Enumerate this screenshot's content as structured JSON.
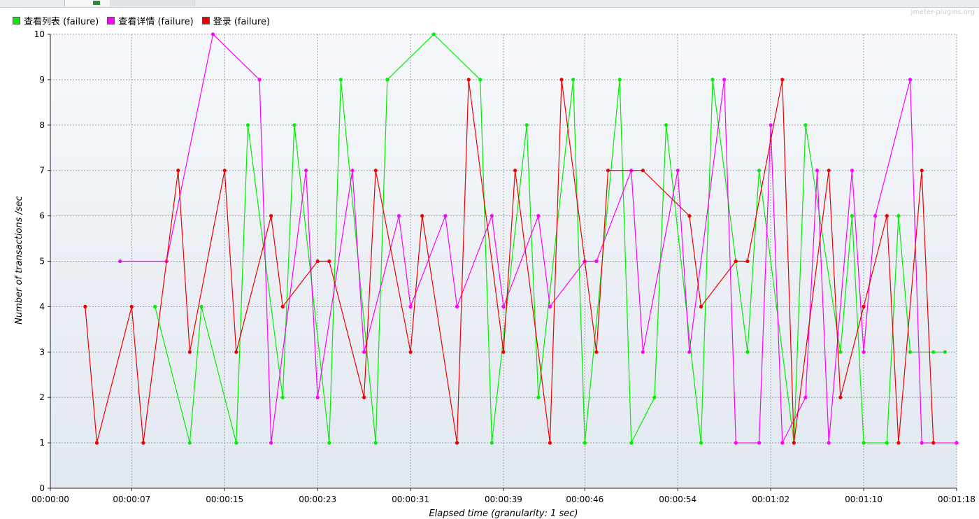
{
  "watermark": "jmeter-plugins.org",
  "colors": {
    "green": "#00ee00",
    "magenta": "#ff00ff",
    "red": "#ee0000"
  },
  "chart_data": {
    "type": "line",
    "title": "",
    "xlabel": "Elapsed time (granularity: 1 sec)",
    "ylabel": "Number of transactions /sec",
    "ylim": [
      0,
      10
    ],
    "xlim_seconds": [
      0,
      78
    ],
    "yticks": [
      "0",
      "1",
      "2",
      "3",
      "4",
      "5",
      "6",
      "7",
      "8",
      "9",
      "10"
    ],
    "xticks": [
      "00:00:00",
      "00:00:07",
      "00:00:15",
      "00:00:23",
      "00:00:31",
      "00:00:39",
      "00:00:46",
      "00:00:54",
      "00:01:02",
      "00:01:10",
      "00:01:18"
    ],
    "grid": true,
    "legend_position": "top-left",
    "series": [
      {
        "name": "查看列表 (failure)",
        "color": "#00ee00",
        "x": [
          "00:00:09",
          "00:00:12",
          "00:00:13",
          "00:00:16",
          "00:00:17",
          "00:00:20",
          "00:00:21",
          "00:00:24",
          "00:00:25",
          "00:00:28",
          "00:00:29",
          "00:00:33",
          "00:00:37",
          "00:00:38",
          "00:00:41",
          "00:00:42",
          "00:00:45",
          "00:00:46",
          "00:00:49",
          "00:00:50",
          "00:00:52",
          "00:00:53",
          "00:00:56",
          "00:00:57",
          "00:01:00",
          "00:01:01",
          "00:01:04",
          "00:01:05",
          "00:01:08",
          "00:01:09",
          "00:01:10",
          "00:01:12",
          "00:01:13",
          "00:01:14",
          "00:01:16",
          "00:01:17"
        ],
        "values": [
          4,
          1,
          4,
          1,
          8,
          2,
          8,
          1,
          9,
          1,
          9,
          10,
          9,
          1,
          8,
          2,
          9,
          1,
          9,
          1,
          2,
          8,
          1,
          9,
          3,
          7,
          1,
          8,
          3,
          6,
          1,
          1,
          6,
          3,
          3,
          3
        ]
      },
      {
        "name": "查看详情 (failure)",
        "color": "#ff00ff",
        "x": [
          "00:00:06",
          "00:00:10",
          "00:00:14",
          "00:00:18",
          "00:00:19",
          "00:00:22",
          "00:00:23",
          "00:00:26",
          "00:00:27",
          "00:00:30",
          "00:00:31",
          "00:00:34",
          "00:00:35",
          "00:00:38",
          "00:00:39",
          "00:00:42",
          "00:00:43",
          "00:00:46",
          "00:00:47",
          "00:00:50",
          "00:00:51",
          "00:00:54",
          "00:00:55",
          "00:00:58",
          "00:00:59",
          "00:01:01",
          "00:01:02",
          "00:01:03",
          "00:01:05",
          "00:01:06",
          "00:01:07",
          "00:01:09",
          "00:01:10",
          "00:01:11",
          "00:01:14",
          "00:01:15",
          "00:01:18"
        ],
        "values": [
          5,
          5,
          10,
          9,
          1,
          7,
          2,
          7,
          3,
          6,
          4,
          6,
          4,
          6,
          4,
          6,
          4,
          5,
          5,
          7,
          3,
          7,
          3,
          9,
          1,
          1,
          8,
          1,
          2,
          7,
          1,
          7,
          3,
          6,
          9,
          1,
          1
        ]
      },
      {
        "name": "登录 (failure)",
        "color": "#ee0000",
        "x": [
          "00:00:03",
          "00:00:04",
          "00:00:07",
          "00:00:08",
          "00:00:11",
          "00:00:12",
          "00:00:15",
          "00:00:16",
          "00:00:19",
          "00:00:20",
          "00:00:23",
          "00:00:24",
          "00:00:27",
          "00:00:28",
          "00:00:31",
          "00:00:32",
          "00:00:35",
          "00:00:36",
          "00:00:39",
          "00:00:40",
          "00:00:43",
          "00:00:44",
          "00:00:47",
          "00:00:48",
          "00:00:51",
          "00:00:55",
          "00:00:56",
          "00:00:59",
          "00:01:00",
          "00:01:03",
          "00:01:04",
          "00:01:07",
          "00:01:08",
          "00:01:10",
          "00:01:12",
          "00:01:13",
          "00:01:15",
          "00:01:16"
        ],
        "values": [
          4,
          1,
          4,
          1,
          7,
          3,
          7,
          3,
          6,
          4,
          5,
          5,
          2,
          7,
          3,
          6,
          1,
          9,
          3,
          7,
          1,
          9,
          3,
          7,
          7,
          6,
          4,
          5,
          5,
          9,
          1,
          7,
          2,
          4,
          6,
          1,
          7,
          1
        ]
      }
    ]
  }
}
